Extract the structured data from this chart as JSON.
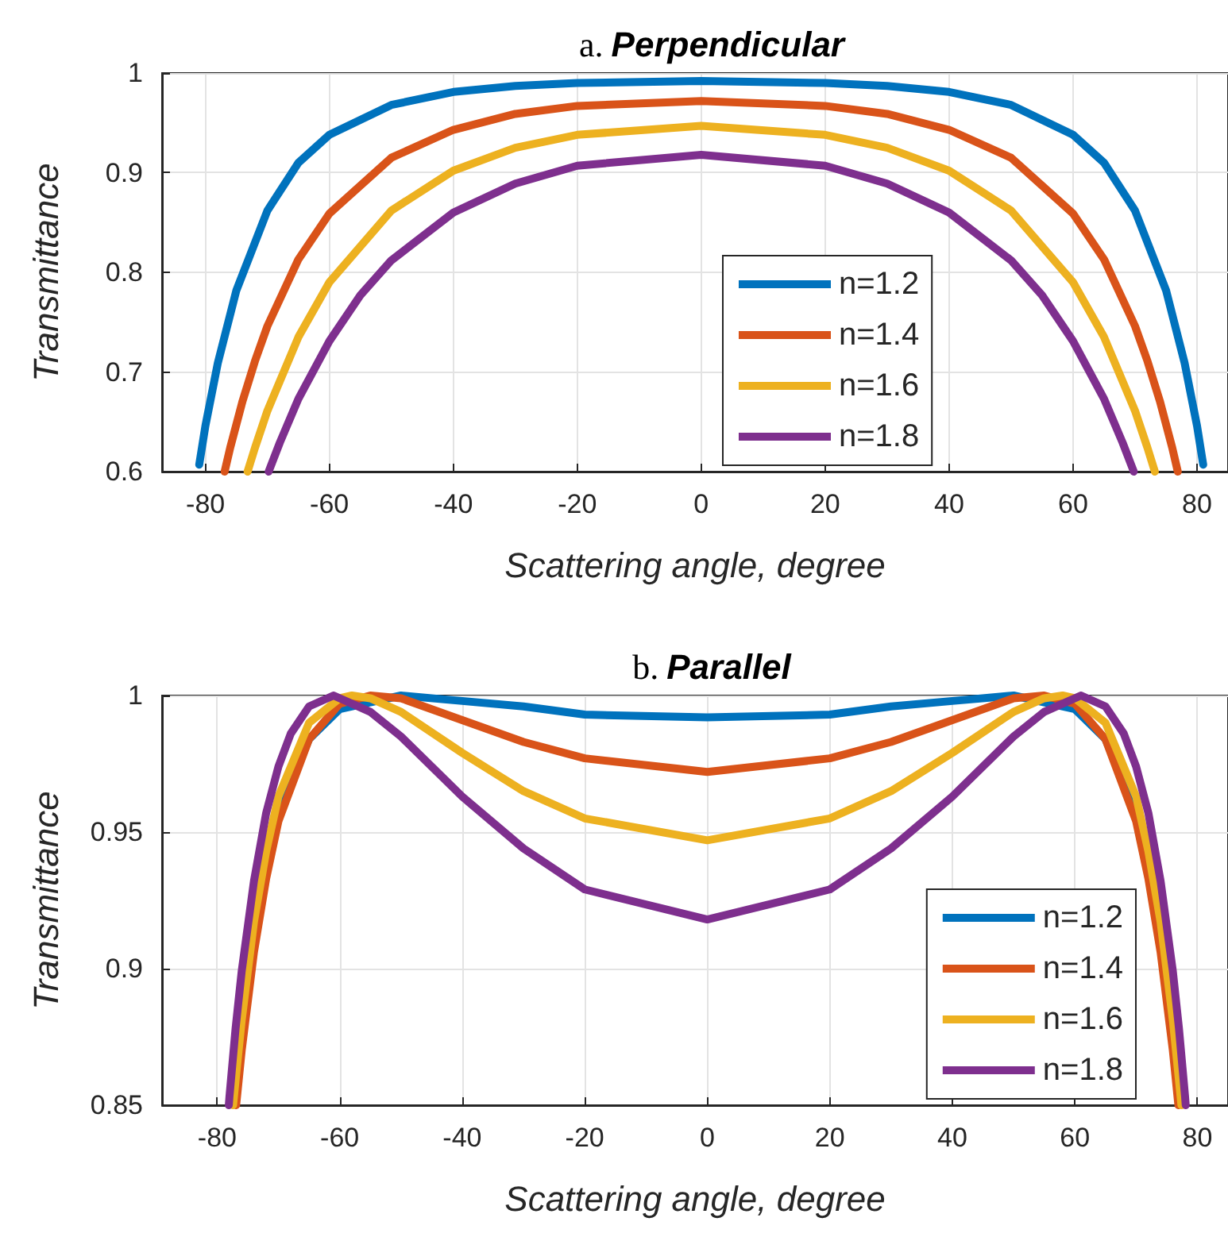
{
  "chart_data": [
    {
      "type": "line",
      "title": "a. Perpendicular",
      "xlabel": "Scattering angle, degree",
      "ylabel": "Transmittance",
      "xlim": [
        -87,
        85
      ],
      "xticks": [
        -80,
        -60,
        -40,
        -20,
        0,
        20,
        40,
        60,
        80
      ],
      "ylim": [
        0.6,
        1
      ],
      "yticks": [
        0.6,
        0.7,
        0.8,
        0.9,
        1
      ],
      "grid": true,
      "legend": "bottom",
      "series": [
        {
          "name": "n=1.2",
          "color": "#0072bd",
          "x": [
            -81,
            -80,
            -78,
            -75,
            -70,
            -65,
            -60,
            -50,
            -40,
            -30,
            -20,
            0,
            20,
            30,
            40,
            50,
            60,
            65,
            70,
            75,
            78,
            80,
            81
          ],
          "values": [
            0.607,
            0.646,
            0.709,
            0.782,
            0.862,
            0.91,
            0.938,
            0.968,
            0.981,
            0.987,
            0.99,
            0.992,
            0.99,
            0.987,
            0.981,
            0.968,
            0.938,
            0.91,
            0.862,
            0.782,
            0.709,
            0.646,
            0.607
          ]
        },
        {
          "name": "n=1.4",
          "color": "#d95319",
          "x": [
            -76.9,
            -76,
            -74,
            -72,
            -70,
            -65,
            -60,
            -50,
            -40,
            -30,
            -20,
            0,
            20,
            30,
            40,
            50,
            60,
            65,
            70,
            72,
            74,
            76,
            76.9
          ],
          "values": [
            0.6,
            0.624,
            0.671,
            0.711,
            0.746,
            0.813,
            0.859,
            0.915,
            0.943,
            0.959,
            0.967,
            0.972,
            0.967,
            0.959,
            0.943,
            0.915,
            0.859,
            0.813,
            0.746,
            0.711,
            0.671,
            0.624,
            0.6
          ]
        },
        {
          "name": "n=1.6",
          "color": "#edb120",
          "x": [
            -73.2,
            -72,
            -70,
            -65,
            -60,
            -50,
            -40,
            -30,
            -20,
            0,
            20,
            30,
            40,
            50,
            60,
            65,
            70,
            72,
            73.2
          ],
          "values": [
            0.6,
            0.624,
            0.661,
            0.735,
            0.79,
            0.862,
            0.902,
            0.925,
            0.938,
            0.947,
            0.938,
            0.925,
            0.902,
            0.862,
            0.79,
            0.735,
            0.661,
            0.624,
            0.6
          ]
        },
        {
          "name": "n=1.8",
          "color": "#7e2f8e",
          "x": [
            -69.8,
            -68,
            -65,
            -60,
            -55,
            -50,
            -40,
            -30,
            -20,
            0,
            20,
            30,
            40,
            50,
            55,
            60,
            65,
            68,
            69.8
          ],
          "values": [
            0.6,
            0.629,
            0.673,
            0.731,
            0.777,
            0.812,
            0.86,
            0.889,
            0.907,
            0.918,
            0.907,
            0.889,
            0.86,
            0.812,
            0.777,
            0.731,
            0.673,
            0.629,
            0.6
          ]
        }
      ]
    },
    {
      "type": "line",
      "title": "b. Parallel",
      "xlabel": "Scattering angle, degree",
      "ylabel": "Transmittance",
      "xlim": [
        -89,
        85
      ],
      "xticks": [
        -80,
        -60,
        -40,
        -20,
        0,
        20,
        40,
        60,
        80
      ],
      "ylim": [
        0.85,
        1
      ],
      "yticks": [
        0.85,
        0.9,
        0.95,
        1
      ],
      "grid": true,
      "legend": "bottom right",
      "series": [
        {
          "name": "n=1.2",
          "color": "#0072bd",
          "x": [
            -75,
            -70,
            -65,
            -60,
            -50,
            -40,
            -30,
            -20,
            0,
            20,
            30,
            40,
            50,
            60,
            65,
            70,
            75
          ],
          "values": [
            0.902,
            0.958,
            0.984,
            0.995,
            1,
            0.998,
            0.996,
            0.993,
            0.992,
            0.993,
            0.996,
            0.998,
            1,
            0.995,
            0.984,
            0.958,
            0.902
          ]
        },
        {
          "name": "n=1.4",
          "color": "#d95319",
          "x": [
            -76.9,
            -76,
            -74,
            -72,
            -70,
            -65,
            -60,
            -55,
            -50,
            -40,
            -30,
            -20,
            0,
            20,
            30,
            40,
            50,
            55,
            60,
            65,
            70,
            72,
            74,
            76,
            76.9
          ],
          "values": [
            0.85,
            0.87,
            0.906,
            0.933,
            0.954,
            0.984,
            0.997,
            1,
            0.999,
            0.991,
            0.983,
            0.977,
            0.972,
            0.977,
            0.983,
            0.991,
            0.999,
            1,
            0.997,
            0.984,
            0.954,
            0.933,
            0.906,
            0.87,
            0.85
          ]
        },
        {
          "name": "n=1.6",
          "color": "#edb120",
          "x": [
            -77.4,
            -77,
            -76,
            -74,
            -72,
            -70,
            -65,
            -60,
            -58,
            -55,
            -50,
            -40,
            -30,
            -20,
            0,
            20,
            30,
            40,
            50,
            55,
            58,
            60,
            65,
            70,
            72,
            74,
            76,
            77,
            77.4
          ],
          "values": [
            0.85,
            0.859,
            0.881,
            0.917,
            0.943,
            0.963,
            0.99,
            0.999,
            1,
            0.999,
            0.994,
            0.979,
            0.965,
            0.955,
            0.947,
            0.955,
            0.965,
            0.979,
            0.994,
            0.999,
            1,
            0.999,
            0.99,
            0.963,
            0.943,
            0.917,
            0.881,
            0.859,
            0.85
          ]
        },
        {
          "name": "n=1.8",
          "color": "#7e2f8e",
          "x": [
            -78.1,
            -78,
            -77,
            -76,
            -74,
            -72,
            -70,
            -68,
            -65,
            -61,
            -55,
            -50,
            -40,
            -30,
            -20,
            0,
            20,
            30,
            40,
            50,
            55,
            61,
            65,
            68,
            70,
            72,
            74,
            76,
            77,
            78,
            78.1
          ],
          "values": [
            0.85,
            0.853,
            0.878,
            0.899,
            0.932,
            0.957,
            0.974,
            0.986,
            0.996,
            1,
            0.994,
            0.985,
            0.963,
            0.944,
            0.929,
            0.918,
            0.929,
            0.944,
            0.963,
            0.985,
            0.994,
            1,
            0.996,
            0.986,
            0.974,
            0.957,
            0.932,
            0.899,
            0.878,
            0.853,
            0.85
          ]
        }
      ]
    }
  ]
}
